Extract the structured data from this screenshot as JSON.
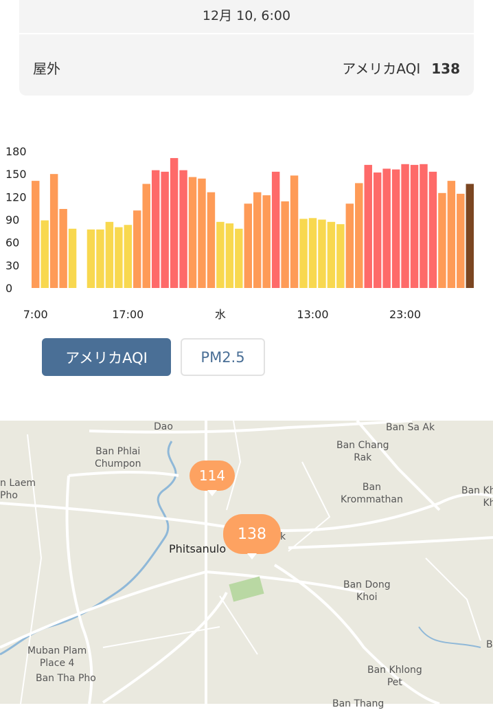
{
  "card": {
    "date": "12月 10, 6:00",
    "location": "屋外",
    "aqi_label": "アメリカAQI",
    "aqi_value": "138"
  },
  "chart_data": {
    "type": "bar",
    "title": "",
    "xlabel": "",
    "ylabel": "",
    "ylim": [
      0,
      180
    ],
    "y_ticks": [
      "180",
      "150",
      "120",
      "90",
      "60",
      "30",
      "0"
    ],
    "x_tick_labels": [
      "7:00",
      "17:00",
      "水",
      "13:00",
      "23:00"
    ],
    "grid": false,
    "values": [
      141,
      89,
      150,
      104,
      78,
      null,
      77,
      77,
      87,
      80,
      83,
      102,
      137,
      155,
      153,
      171,
      155,
      146,
      144,
      126,
      87,
      85,
      78,
      111,
      126,
      122,
      153,
      114,
      148,
      91,
      92,
      90,
      87,
      84,
      111,
      138,
      162,
      152,
      157,
      156,
      163,
      162,
      163,
      153,
      125,
      141,
      124,
      137
    ],
    "colors": {
      "good": "#f8d84f",
      "moderate": "#fe9b57",
      "unhealthy": "#fe6a69",
      "current": "#7b4621"
    }
  },
  "buttons": {
    "aqi": "アメリカAQI",
    "pm": "PM2.5"
  },
  "map": {
    "labels": {
      "dao": "Dao",
      "ban_sa_ak": "Ban Sa Ak",
      "ban_phlai": "Ban Phlai\nChumpon",
      "ban_chang_rak": "Ban Chang\nRak",
      "laem_pho": "n Laem\nPho",
      "ban_krommathan": "Ban\nKrommathan",
      "ban_kh": "Ban Kh\nKh",
      "phitsanulok": "Phitsanulo",
      "phitsanulok_k": "k",
      "ban_dong_khoi": "Ban Dong\nKhoi",
      "muban_plam": "Muban Plam\nPlace 4",
      "ban_tha_pho": "Ban Tha Pho",
      "ban_khlong_pet": "Ban Khlong\nPet",
      "ban_thang": "Ban Thang",
      "edge_b": "B"
    },
    "pins": [
      "114",
      "138"
    ]
  }
}
